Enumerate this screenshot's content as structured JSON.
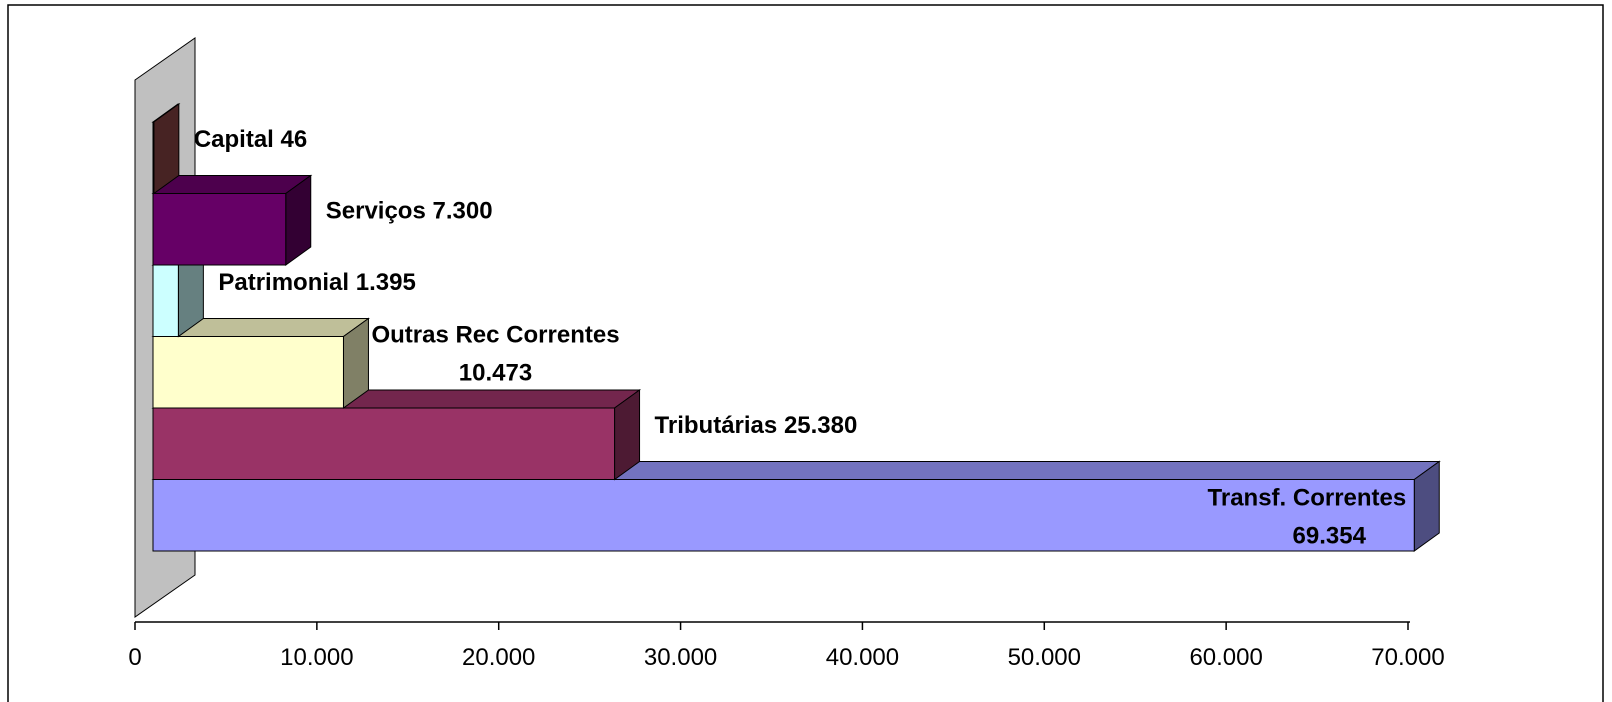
{
  "chart_data": {
    "type": "bar3d_horizontal",
    "categories": [
      "Transf. Correntes",
      "Tributárias",
      "Outras Rec Correntes",
      "Patrimonial",
      "Serviços",
      "Capital"
    ],
    "values": [
      69354,
      25380,
      10473,
      1395,
      7300,
      46
    ],
    "value_labels": [
      "69.354",
      "25.380",
      "10.473",
      "1.395",
      "7.300",
      "46"
    ],
    "colors": [
      "#9999ff",
      "#993366",
      "#ffffcc",
      "#ccffff",
      "#660066",
      "#8e4646"
    ],
    "xlim": [
      0,
      70000
    ],
    "xticks": [
      0,
      {
        "value": 10000,
        "label": "10.000"
      },
      {
        "value": 20000,
        "label": "20.000"
      },
      {
        "value": 30000,
        "label": "30.000"
      },
      {
        "value": 40000,
        "label": "40.000"
      },
      {
        "value": 50000,
        "label": "50.000"
      },
      {
        "value": 60000,
        "label": "60.000"
      },
      {
        "value": 70000,
        "label": "70.000"
      }
    ]
  }
}
